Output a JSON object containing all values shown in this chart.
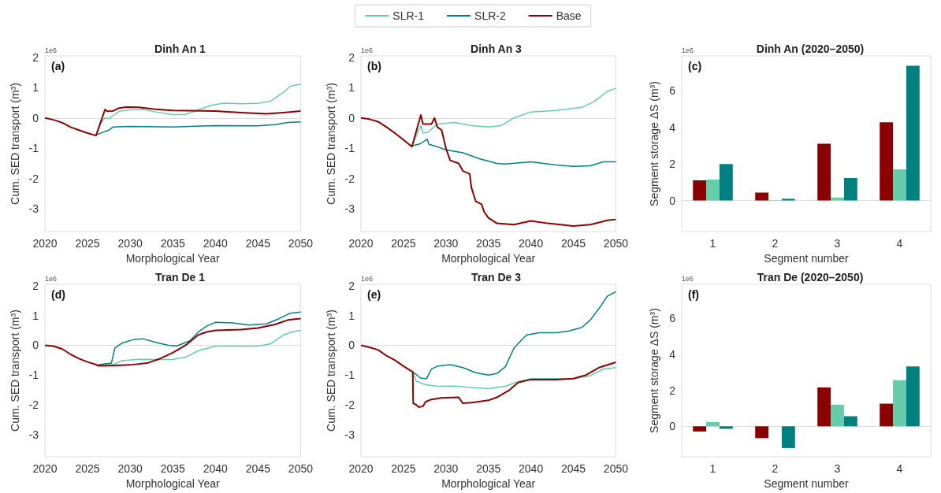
{
  "chart_data": [
    {
      "type": "line",
      "title": "Dinh An 1",
      "xlabel": "Morphological Year",
      "ylabel": "Cum. SED transport (m³)",
      "annotations": [
        "(a)",
        "1e6"
      ],
      "xlim": [
        2020,
        2050
      ],
      "xticks": [
        2020,
        2025,
        2030,
        2035,
        2040,
        2045,
        2050
      ],
      "ylim": [
        -3.75,
        2.05
      ],
      "yticks": [
        -3,
        -2,
        -1,
        0,
        1,
        2
      ],
      "ref_lines": [
        {
          "axis": "y",
          "value": 0,
          "color": "#dddddd"
        }
      ],
      "series": [
        {
          "color": "#66cdaa",
          "x": [
            2026,
            2026.5,
            2027,
            2027.5,
            2028,
            2028.7,
            2030,
            2031.5,
            2033,
            2035,
            2036.5,
            2038,
            2039.5,
            2041,
            2043,
            2045,
            2046.5,
            2048,
            2048.8,
            2050
          ],
          "values": [
            -0.56,
            -0.2,
            0.0,
            -0.02,
            0.08,
            0.22,
            0.27,
            0.28,
            0.2,
            0.11,
            0.12,
            0.27,
            0.42,
            0.49,
            0.47,
            0.48,
            0.56,
            0.85,
            1.05,
            1.12
          ]
        },
        {
          "color": "#008080",
          "x": [
            2026,
            2027,
            2027.5,
            2028,
            2030,
            2035,
            2040,
            2045,
            2047,
            2048.5,
            2050
          ],
          "values": [
            -0.56,
            -0.45,
            -0.4,
            -0.3,
            -0.28,
            -0.3,
            -0.25,
            -0.26,
            -0.22,
            -0.15,
            -0.13
          ]
        },
        {
          "color": "#8b0000",
          "x": [
            2020,
            2021,
            2022,
            2023,
            2024,
            2025,
            2026,
            2027.05,
            2027.3,
            2028,
            2028.6,
            2029.5,
            2031,
            2033,
            2035,
            2040,
            2043,
            2046,
            2048,
            2050
          ],
          "values": [
            0,
            -0.06,
            -0.15,
            -0.3,
            -0.4,
            -0.5,
            -0.58,
            0.28,
            0.22,
            0.23,
            0.32,
            0.36,
            0.35,
            0.29,
            0.25,
            0.23,
            0.18,
            0.14,
            0.18,
            0.23
          ]
        }
      ]
    },
    {
      "type": "line",
      "title": "Dinh An 3",
      "xlabel": "Morphological Year",
      "ylabel": "Cum. SED transport (m³)",
      "annotations": [
        "(b)",
        "1e6"
      ],
      "legend": "top",
      "xlim": [
        2020,
        2050
      ],
      "xticks": [
        2020,
        2025,
        2030,
        2035,
        2040,
        2045,
        2050
      ],
      "ylim": [
        -3.75,
        2.05
      ],
      "yticks": [
        -3,
        -2,
        -1,
        0,
        1,
        2
      ],
      "ref_lines": [
        {
          "axis": "y",
          "value": 0,
          "color": "#dddddd"
        }
      ],
      "series": [
        {
          "name": "SLR-1",
          "color": "#66cdaa",
          "x": [
            2026,
            2026.5,
            2027.05,
            2027.3,
            2027.8,
            2028.6,
            2029,
            2031,
            2033,
            2035,
            2036.5,
            2038,
            2040,
            2043,
            2046,
            2047.5,
            2049,
            2050
          ],
          "values": [
            -0.92,
            -0.6,
            -0.25,
            -0.5,
            -0.48,
            -0.3,
            -0.2,
            -0.15,
            -0.25,
            -0.3,
            -0.25,
            0.0,
            0.2,
            0.25,
            0.35,
            0.55,
            0.88,
            0.98
          ]
        },
        {
          "name": "SLR-2",
          "color": "#008080",
          "x": [
            2026,
            2027,
            2027.8,
            2028,
            2029,
            2030,
            2032,
            2034,
            2036,
            2037,
            2040,
            2043,
            2045,
            2047,
            2048.5,
            2050
          ],
          "values": [
            -0.92,
            -0.85,
            -0.7,
            -0.87,
            -0.95,
            -1.05,
            -1.15,
            -1.35,
            -1.5,
            -1.52,
            -1.45,
            -1.55,
            -1.6,
            -1.58,
            -1.45,
            -1.45
          ]
        },
        {
          "name": "Base",
          "color": "#8b0000",
          "x": [
            2020,
            2021,
            2022,
            2023,
            2024,
            2025,
            2026,
            2027.05,
            2027.3,
            2028.3,
            2028.65,
            2029,
            2029.5,
            2030,
            2030.5,
            2031.5,
            2032,
            2032.8,
            2033,
            2033.5,
            2034.2,
            2034.5,
            2035,
            2036,
            2038,
            2040,
            2042,
            2045,
            2047,
            2049,
            2050
          ],
          "values": [
            0,
            -0.04,
            -0.12,
            -0.3,
            -0.5,
            -0.72,
            -0.95,
            0.1,
            -0.2,
            -0.2,
            0.0,
            -0.3,
            -0.4,
            -1.0,
            -1.4,
            -1.5,
            -1.75,
            -1.85,
            -2.3,
            -2.75,
            -2.85,
            -3.1,
            -3.3,
            -3.48,
            -3.52,
            -3.4,
            -3.48,
            -3.57,
            -3.52,
            -3.38,
            -3.35
          ]
        }
      ]
    },
    {
      "type": "bar",
      "title": "Dinh An (2020–2050)",
      "xlabel": "Segment number",
      "ylabel": "Segment storage ΔS (m³)",
      "annotations": [
        "(c)",
        "1e6"
      ],
      "categories": [
        "1",
        "2",
        "3",
        "4"
      ],
      "ylim": [
        -1.7,
        7.9
      ],
      "yticks": [
        0,
        2,
        4,
        6
      ],
      "ref_lines": [
        {
          "axis": "y",
          "value": 0,
          "color": "#dddddd"
        }
      ],
      "series": [
        {
          "color": "#8b0000",
          "values": [
            1.1,
            0.43,
            3.1,
            4.27
          ]
        },
        {
          "color": "#66cdaa",
          "values": [
            1.14,
            0.02,
            0.16,
            1.7
          ]
        },
        {
          "color": "#008080",
          "values": [
            1.99,
            0.09,
            1.23,
            7.36
          ]
        }
      ]
    },
    {
      "type": "line",
      "title": "Tran De 1",
      "xlabel": "Morphological Year",
      "ylabel": "Cum. SED transport (m³)",
      "annotations": [
        "(d)",
        "1e6"
      ],
      "xlim": [
        2020,
        2050
      ],
      "xticks": [
        2020,
        2025,
        2030,
        2035,
        2040,
        2045,
        2050
      ],
      "ylim": [
        -3.75,
        2.05
      ],
      "yticks": [
        -3,
        -2,
        -1,
        0,
        1,
        2
      ],
      "ref_lines": [
        {
          "axis": "y",
          "value": 0,
          "color": "#dddddd"
        }
      ],
      "series": [
        {
          "color": "#66cdaa",
          "x": [
            2026.3,
            2028,
            2029,
            2031,
            2033,
            2035,
            2036.5,
            2038,
            2040,
            2042,
            2045,
            2046.5,
            2048,
            2049,
            2050
          ],
          "values": [
            -0.65,
            -0.65,
            -0.52,
            -0.47,
            -0.48,
            -0.48,
            -0.4,
            -0.18,
            -0.03,
            -0.03,
            -0.03,
            0.05,
            0.35,
            0.45,
            0.5
          ]
        },
        {
          "color": "#008080",
          "x": [
            2026.3,
            2027.8,
            2028.2,
            2029,
            2030.5,
            2031.5,
            2033,
            2034.5,
            2035.5,
            2037,
            2038,
            2039,
            2040,
            2042,
            2044,
            2046,
            2047.5,
            2048.8,
            2050
          ],
          "values": [
            -0.65,
            -0.6,
            -0.1,
            0.07,
            0.2,
            0.22,
            0.1,
            0.0,
            -0.02,
            0.15,
            0.45,
            0.65,
            0.77,
            0.75,
            0.68,
            0.72,
            0.9,
            1.08,
            1.12
          ]
        },
        {
          "color": "#8b0000",
          "x": [
            2020,
            2021,
            2022,
            2023,
            2024,
            2025,
            2026,
            2026.3,
            2028,
            2030,
            2032,
            2033.5,
            2035,
            2036.5,
            2038,
            2039,
            2040,
            2043,
            2045,
            2047,
            2048.5,
            2050
          ],
          "values": [
            0,
            -0.03,
            -0.12,
            -0.3,
            -0.45,
            -0.56,
            -0.65,
            -0.69,
            -0.68,
            -0.66,
            -0.6,
            -0.45,
            -0.25,
            0.0,
            0.35,
            0.45,
            0.5,
            0.53,
            0.58,
            0.7,
            0.85,
            0.9
          ]
        }
      ]
    },
    {
      "type": "line",
      "title": "Tran De 3",
      "xlabel": "Morphological Year",
      "ylabel": "Cum. SED transport (m³)",
      "annotations": [
        "(e)",
        "1e6"
      ],
      "xlim": [
        2020,
        2050
      ],
      "xticks": [
        2020,
        2025,
        2030,
        2035,
        2040,
        2045,
        2050
      ],
      "ylim": [
        -3.75,
        2.05
      ],
      "yticks": [
        -3,
        -2,
        -1,
        0,
        1,
        2
      ],
      "ref_lines": [
        {
          "axis": "y",
          "value": 0,
          "color": "#dddddd"
        }
      ],
      "series": [
        {
          "color": "#66cdaa",
          "x": [
            2026.1,
            2026.5,
            2027.5,
            2029,
            2031,
            2033,
            2035,
            2037,
            2038.5,
            2040,
            2042,
            2045,
            2047,
            2048.5,
            2050
          ],
          "values": [
            -0.9,
            -1.2,
            -1.32,
            -1.38,
            -1.37,
            -1.42,
            -1.46,
            -1.38,
            -1.22,
            -1.12,
            -1.12,
            -1.12,
            -1.02,
            -0.8,
            -0.75
          ]
        },
        {
          "color": "#008080",
          "x": [
            2026.1,
            2026.6,
            2027,
            2027.7,
            2028.3,
            2029,
            2030.5,
            2032,
            2033.5,
            2035,
            2036,
            2037,
            2038,
            2038.8,
            2039.5,
            2041,
            2043,
            2044.5,
            2046,
            2047,
            2048.3,
            2049,
            2050
          ],
          "values": [
            -0.9,
            -1.0,
            -1.1,
            -1.13,
            -0.8,
            -0.7,
            -0.65,
            -0.75,
            -0.92,
            -1.0,
            -0.95,
            -0.72,
            -0.1,
            0.15,
            0.35,
            0.42,
            0.42,
            0.48,
            0.6,
            0.85,
            1.35,
            1.65,
            1.8
          ]
        },
        {
          "color": "#8b0000",
          "x": [
            2020,
            2021,
            2022,
            2023,
            2024,
            2025,
            2026,
            2026.1,
            2026.15,
            2026.5,
            2026.8,
            2027.3,
            2027.6,
            2028.3,
            2029.5,
            2031.5,
            2032,
            2033,
            2035,
            2036,
            2037.5,
            2038.5,
            2040,
            2043,
            2045,
            2046.5,
            2048,
            2050
          ],
          "values": [
            0,
            -0.07,
            -0.15,
            -0.35,
            -0.5,
            -0.7,
            -0.88,
            -0.9,
            -1.95,
            -2.0,
            -2.08,
            -2.05,
            -1.9,
            -1.82,
            -1.77,
            -1.75,
            -1.95,
            -1.93,
            -1.85,
            -1.75,
            -1.5,
            -1.25,
            -1.15,
            -1.15,
            -1.12,
            -1.0,
            -0.75,
            -0.57
          ]
        }
      ]
    },
    {
      "type": "bar",
      "title": "Tran De (2020–2050)",
      "xlabel": "Segment number",
      "ylabel": "Segment storage ΔS (m³)",
      "annotations": [
        "(f)",
        "1e6"
      ],
      "categories": [
        "1",
        "2",
        "3",
        "4"
      ],
      "ylim": [
        -1.7,
        7.9
      ],
      "yticks": [
        0,
        2,
        4,
        6
      ],
      "ref_lines": [
        {
          "axis": "y",
          "value": 0,
          "color": "#dddddd"
        }
      ],
      "series": [
        {
          "color": "#8b0000",
          "values": [
            -0.29,
            -0.66,
            2.16,
            1.26
          ]
        },
        {
          "color": "#66cdaa",
          "values": [
            0.24,
            0.0,
            1.2,
            2.56
          ]
        },
        {
          "color": "#008080",
          "values": [
            -0.14,
            -1.21,
            0.56,
            3.33
          ]
        }
      ]
    }
  ]
}
